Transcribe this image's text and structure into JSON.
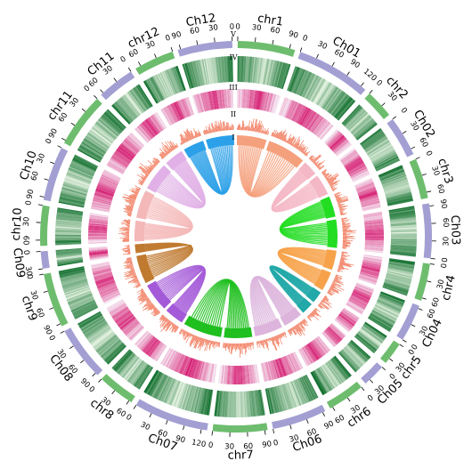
{
  "figure": {
    "title": "",
    "track_labels": [
      "I",
      "II",
      "III",
      "IV",
      "V"
    ]
  },
  "colors": {
    "green_chr": "#6ebd6e",
    "purple_chr": "#a39fd3",
    "gene_density_low": "#e8f5e4",
    "gene_density_high": "#0f6e2c",
    "repeat_low": "#f5e6f2",
    "repeat_high": "#d4136b",
    "gc_bar": "#f07050"
  },
  "chromosomes": [
    {
      "name": "chr1",
      "length": 100,
      "group": "green",
      "ticks": [
        "0",
        "30",
        "60",
        "90"
      ]
    },
    {
      "name": "Ch01",
      "length": 130,
      "group": "purple",
      "ticks": [
        "0",
        "30",
        "60",
        "90",
        "120"
      ]
    },
    {
      "name": "chr2",
      "length": 50,
      "group": "green",
      "ticks": [
        "0",
        "30"
      ]
    },
    {
      "name": "Ch02",
      "length": 70,
      "group": "purple",
      "ticks": [
        "0",
        "30",
        "60"
      ]
    },
    {
      "name": "chr3",
      "length": 70,
      "group": "green",
      "ticks": [
        "0",
        "30",
        "60"
      ]
    },
    {
      "name": "Ch03",
      "length": 95,
      "group": "purple",
      "ticks": [
        "90",
        "60",
        "30",
        "0"
      ]
    },
    {
      "name": "chr4",
      "length": 65,
      "group": "green",
      "ticks": [
        "0",
        "30",
        "60"
      ]
    },
    {
      "name": "Ch04",
      "length": 65,
      "group": "purple",
      "ticks": [
        "60",
        "30",
        "0"
      ]
    },
    {
      "name": "chr5",
      "length": 40,
      "group": "green",
      "ticks": [
        "0",
        "30"
      ]
    },
    {
      "name": "Ch05",
      "length": 40,
      "group": "purple",
      "ticks": [
        "0",
        "30"
      ]
    },
    {
      "name": "chr6",
      "length": 65,
      "group": "green",
      "ticks": [
        "0",
        "30",
        "60"
      ]
    },
    {
      "name": "Ch06",
      "length": 95,
      "group": "purple",
      "ticks": [
        "90",
        "60",
        "30",
        "0"
      ]
    },
    {
      "name": "chr7",
      "length": 95,
      "group": "green",
      "ticks": [
        "90",
        "60",
        "30",
        "0"
      ]
    },
    {
      "name": "Ch07",
      "length": 130,
      "group": "purple",
      "ticks": [
        "120",
        "90",
        "60",
        "30",
        "0"
      ]
    },
    {
      "name": "chr8",
      "length": 65,
      "group": "green",
      "ticks": [
        "60",
        "30",
        "0"
      ]
    },
    {
      "name": "Ch08",
      "length": 95,
      "group": "purple",
      "ticks": [
        "90",
        "60",
        "30",
        "0"
      ]
    },
    {
      "name": "chr9",
      "length": 95,
      "group": "green",
      "ticks": [
        "90",
        "60",
        "30",
        "0"
      ]
    },
    {
      "name": "Ch09",
      "length": 30,
      "group": "purple",
      "ticks": [
        "30",
        "0"
      ]
    },
    {
      "name": "chr10",
      "length": 70,
      "group": "green",
      "ticks": [
        "60",
        "30",
        "0"
      ]
    },
    {
      "name": "Ch10",
      "length": 95,
      "group": "purple",
      "ticks": [
        "90",
        "60",
        "30",
        "0"
      ]
    },
    {
      "name": "chr11",
      "length": 95,
      "group": "green",
      "ticks": [
        "90",
        "60",
        "30",
        "0"
      ]
    },
    {
      "name": "Ch11",
      "length": 65,
      "group": "purple",
      "ticks": [
        "60",
        "30",
        "0"
      ]
    },
    {
      "name": "chr12",
      "length": 70,
      "group": "green",
      "ticks": [
        "60",
        "30",
        "0"
      ]
    },
    {
      "name": "Ch12",
      "length": 95,
      "group": "purple",
      "ticks": [
        "90",
        "60",
        "30",
        "0"
      ]
    }
  ],
  "synteny_links": [
    {
      "from": "chr1",
      "to": "Ch01",
      "color": "#f4a07c"
    },
    {
      "from": "chr2",
      "to": "Ch02",
      "color": "#f4b7c6"
    },
    {
      "from": "chr3",
      "to": "Ch03",
      "color": "#22dd22"
    },
    {
      "from": "chr4",
      "to": "Ch04",
      "color": "#f7a24a"
    },
    {
      "from": "chr5",
      "to": "Ch05",
      "color": "#22a8a8"
    },
    {
      "from": "chr6",
      "to": "Ch06",
      "color": "#dcb4dc"
    },
    {
      "from": "chr7",
      "to": "Ch07",
      "color": "#1fbf1f"
    },
    {
      "from": "chr8",
      "to": "Ch08",
      "color": "#a45ad8"
    },
    {
      "from": "chr9",
      "to": "Ch09",
      "color": "#c07a30"
    },
    {
      "from": "chr10",
      "to": "Ch10",
      "color": "#f4b8b8"
    },
    {
      "from": "chr11",
      "to": "Ch11",
      "color": "#e0b0e6"
    },
    {
      "from": "chr12",
      "to": "Ch12",
      "color": "#2ca0e8"
    }
  ]
}
